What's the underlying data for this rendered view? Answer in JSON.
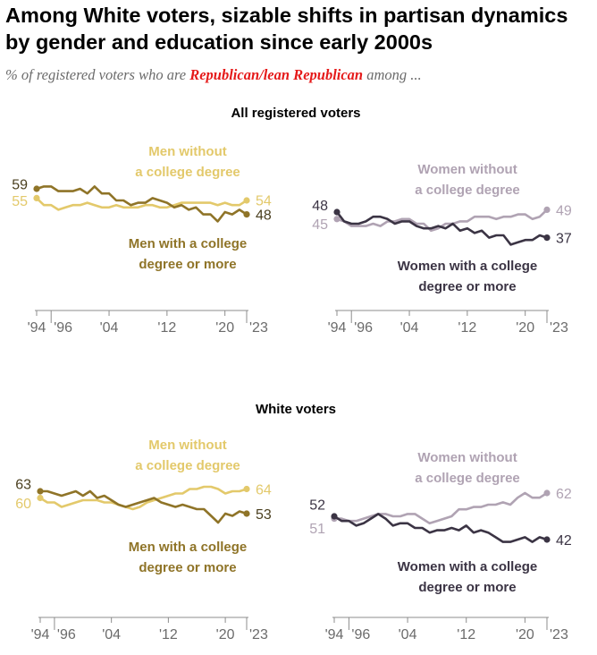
{
  "title": "Among White voters, sizable shifts in partisan dynamics by gender and education since early 2000s",
  "subtitle": {
    "prefix": "% of registered voters who are ",
    "highlight": "Republican/lean Republican",
    "suffix": " among ..."
  },
  "colors": {
    "men_no_degree": "#e3c96b",
    "men_degree": "#8f7428",
    "women_no_degree": "#b0a3b3",
    "women_degree": "#3b3444",
    "axis": "#8c8c8c",
    "tick_label": "#6b6b6b"
  },
  "chart_data": [
    {
      "type": "line",
      "group": "All registered voters",
      "panel": "Men",
      "x": [
        1994,
        1995,
        1996,
        1997,
        1998,
        1999,
        2000,
        2001,
        2002,
        2003,
        2004,
        2005,
        2006,
        2007,
        2008,
        2009,
        2010,
        2011,
        2012,
        2013,
        2014,
        2015,
        2016,
        2017,
        2018,
        2019,
        2020,
        2021,
        2022,
        2023
      ],
      "xticks": [
        "'94",
        "'96",
        "'04",
        "'12",
        "'20",
        "'23"
      ],
      "series": [
        {
          "name": "Men without a college degree",
          "color_key": "men_no_degree",
          "start_label": "55",
          "end_label": "54",
          "values": [
            55,
            52,
            52,
            50,
            51,
            52,
            52,
            53,
            52,
            51,
            51,
            52,
            51,
            51,
            51,
            52,
            52,
            51,
            51,
            52,
            53,
            53,
            53,
            53,
            53,
            52,
            53,
            52,
            52,
            54
          ]
        },
        {
          "name": "Men with a college degree or more",
          "color_key": "men_degree",
          "start_label": "59",
          "end_label": "48",
          "values": [
            59,
            60,
            60,
            58,
            58,
            58,
            59,
            57,
            60,
            57,
            57,
            54,
            54,
            52,
            53,
            53,
            55,
            54,
            53,
            51,
            52,
            50,
            51,
            48,
            48,
            45,
            49,
            48,
            50,
            48
          ]
        }
      ]
    },
    {
      "type": "line",
      "group": "All registered voters",
      "panel": "Women",
      "x": [
        1994,
        1995,
        1996,
        1997,
        1998,
        1999,
        2000,
        2001,
        2002,
        2003,
        2004,
        2005,
        2006,
        2007,
        2008,
        2009,
        2010,
        2011,
        2012,
        2013,
        2014,
        2015,
        2016,
        2017,
        2018,
        2019,
        2020,
        2021,
        2022,
        2023
      ],
      "xticks": [
        "'94",
        "'96",
        "'04",
        "'12",
        "'20",
        "'23"
      ],
      "series": [
        {
          "name": "Women without a college degree",
          "color_key": "women_no_degree",
          "start_label": "45",
          "end_label": "49",
          "values": [
            45,
            44,
            42,
            42,
            42,
            43,
            42,
            44,
            44,
            45,
            45,
            43,
            43,
            40,
            41,
            43,
            43,
            44,
            44,
            46,
            46,
            46,
            45,
            46,
            46,
            47,
            47,
            45,
            46,
            49
          ]
        },
        {
          "name": "Women with a college degree or more",
          "color_key": "women_degree",
          "start_label": "48",
          "end_label": "37",
          "values": [
            48,
            44,
            43,
            43,
            44,
            46,
            46,
            45,
            43,
            44,
            44,
            42,
            41,
            41,
            42,
            41,
            43,
            40,
            41,
            39,
            40,
            37,
            38,
            38,
            34,
            35,
            36,
            36,
            38,
            37
          ]
        }
      ]
    },
    {
      "type": "line",
      "group": "White voters",
      "panel": "Men",
      "x": [
        1994,
        1995,
        1996,
        1997,
        1998,
        1999,
        2000,
        2001,
        2002,
        2003,
        2004,
        2005,
        2006,
        2007,
        2008,
        2009,
        2010,
        2011,
        2012,
        2013,
        2014,
        2015,
        2016,
        2017,
        2018,
        2019,
        2020,
        2021,
        2022,
        2023
      ],
      "xticks": [
        "'94",
        "'96",
        "'04",
        "'12",
        "'20",
        "'23"
      ],
      "series": [
        {
          "name": "Men without a college degree",
          "color_key": "men_no_degree",
          "start_label": "60",
          "end_label": "64",
          "values": [
            60,
            58,
            58,
            56,
            57,
            58,
            59,
            59,
            59,
            58,
            58,
            57,
            56,
            55,
            56,
            58,
            59,
            60,
            61,
            62,
            62,
            64,
            64,
            65,
            65,
            64,
            62,
            63,
            63,
            64
          ]
        },
        {
          "name": "Men with a college degree or more",
          "color_key": "men_degree",
          "start_label": "63",
          "end_label": "53",
          "values": [
            63,
            63,
            62,
            61,
            62,
            63,
            61,
            63,
            60,
            61,
            59,
            57,
            56,
            57,
            58,
            59,
            60,
            58,
            57,
            56,
            57,
            56,
            55,
            55,
            52,
            49,
            53,
            52,
            54,
            53
          ]
        }
      ]
    },
    {
      "type": "line",
      "group": "White voters",
      "panel": "Women",
      "x": [
        1994,
        1995,
        1996,
        1997,
        1998,
        1999,
        2000,
        2001,
        2002,
        2003,
        2004,
        2005,
        2006,
        2007,
        2008,
        2009,
        2010,
        2011,
        2012,
        2013,
        2014,
        2015,
        2016,
        2017,
        2018,
        2019,
        2020,
        2021,
        2022,
        2023
      ],
      "xticks": [
        "'94",
        "'96",
        "'04",
        "'12",
        "'20",
        "'23"
      ],
      "series": [
        {
          "name": "Women without a college degree",
          "color_key": "women_no_degree",
          "start_label": "51",
          "end_label": "62",
          "values": [
            51,
            51,
            50,
            50,
            51,
            52,
            53,
            53,
            52,
            52,
            53,
            53,
            51,
            49,
            50,
            51,
            52,
            55,
            55,
            56,
            56,
            57,
            57,
            58,
            57,
            60,
            62,
            60,
            60,
            62
          ]
        },
        {
          "name": "Women with a college degree or more",
          "color_key": "women_degree",
          "start_label": "52",
          "end_label": "42",
          "values": [
            52,
            50,
            50,
            48,
            49,
            51,
            53,
            51,
            48,
            49,
            49,
            47,
            47,
            45,
            46,
            46,
            47,
            46,
            48,
            45,
            46,
            45,
            43,
            41,
            41,
            42,
            43,
            41,
            43,
            42
          ]
        }
      ]
    }
  ],
  "section_titles": [
    "All registered voters",
    "White voters"
  ]
}
